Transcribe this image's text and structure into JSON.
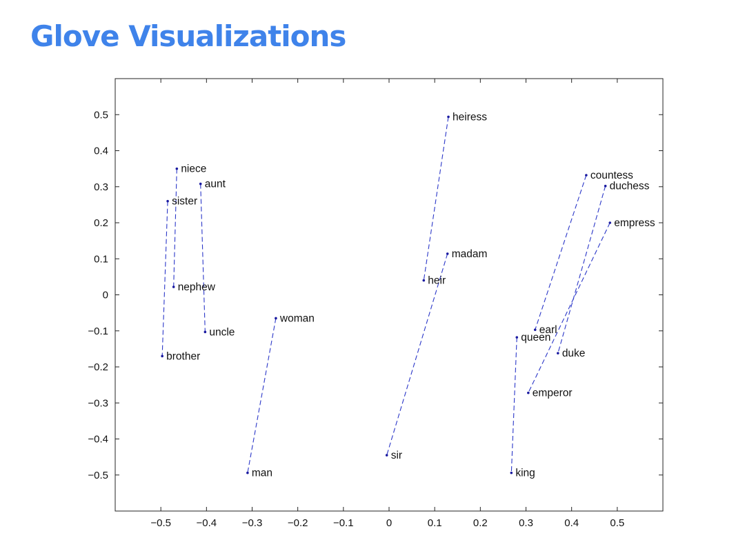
{
  "slide": {
    "title": "Glove Visualizations"
  },
  "colors": {
    "title": "#3f83ea",
    "series_line": "#2a36c8",
    "point": "#1a1aa0"
  },
  "chart_data": {
    "type": "scatter",
    "title": "",
    "xlabel": "",
    "ylabel": "",
    "xlim": [
      -0.6,
      0.6
    ],
    "ylim": [
      -0.6,
      0.6
    ],
    "xticks": [
      -0.5,
      -0.4,
      -0.3,
      -0.2,
      -0.1,
      0,
      0.1,
      0.2,
      0.3,
      0.4,
      0.5
    ],
    "xtick_labels": [
      "−0.5",
      "−0.4",
      "−0.3",
      "−0.2",
      "−0.1",
      "0",
      "0.1",
      "0.2",
      "0.3",
      "0.4",
      "0.5"
    ],
    "yticks": [
      0.5,
      0.4,
      0.3,
      0.2,
      0.1,
      0,
      -0.1,
      -0.2,
      -0.3,
      -0.4,
      -0.5
    ],
    "ytick_labels": [
      "0.5",
      "0.4",
      "0.3",
      "0.2",
      "0.1",
      "0",
      "−0.1",
      "−0.2",
      "−0.3",
      "−0.4",
      "−0.5"
    ],
    "grid": false,
    "line_style": "dashed",
    "points": [
      {
        "label": "niece",
        "x": -0.465,
        "y": 0.35
      },
      {
        "label": "aunt",
        "x": -0.413,
        "y": 0.308
      },
      {
        "label": "sister",
        "x": -0.485,
        "y": 0.26
      },
      {
        "label": "nephew",
        "x": -0.472,
        "y": 0.022
      },
      {
        "label": "uncle",
        "x": -0.403,
        "y": -0.103
      },
      {
        "label": "brother",
        "x": -0.497,
        "y": -0.17
      },
      {
        "label": "woman",
        "x": -0.248,
        "y": -0.065
      },
      {
        "label": "man",
        "x": -0.31,
        "y": -0.494
      },
      {
        "label": "heiress",
        "x": 0.13,
        "y": 0.494
      },
      {
        "label": "madam",
        "x": 0.128,
        "y": 0.114
      },
      {
        "label": "heir",
        "x": 0.076,
        "y": 0.04
      },
      {
        "label": "sir",
        "x": -0.005,
        "y": -0.445
      },
      {
        "label": "countess",
        "x": 0.432,
        "y": 0.332
      },
      {
        "label": "duchess",
        "x": 0.474,
        "y": 0.302
      },
      {
        "label": "empress",
        "x": 0.484,
        "y": 0.2
      },
      {
        "label": "earl",
        "x": 0.32,
        "y": -0.097
      },
      {
        "label": "queen",
        "x": 0.28,
        "y": -0.118
      },
      {
        "label": "duke",
        "x": 0.37,
        "y": -0.162
      },
      {
        "label": "emperor",
        "x": 0.305,
        "y": -0.272
      },
      {
        "label": "king",
        "x": 0.268,
        "y": -0.494
      }
    ],
    "pairs": [
      [
        "niece",
        "nephew"
      ],
      [
        "aunt",
        "uncle"
      ],
      [
        "sister",
        "brother"
      ],
      [
        "woman",
        "man"
      ],
      [
        "heiress",
        "heir"
      ],
      [
        "madam",
        "sir"
      ],
      [
        "countess",
        "earl"
      ],
      [
        "duchess",
        "duke"
      ],
      [
        "empress",
        "emperor"
      ],
      [
        "queen",
        "king"
      ]
    ]
  }
}
